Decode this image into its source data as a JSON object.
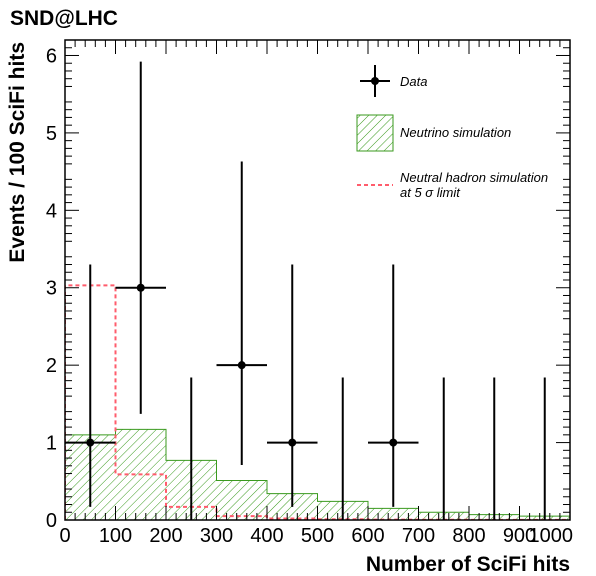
{
  "experiment_label": "SND@LHC",
  "chart_data": {
    "type": "histogram",
    "xlabel": "Number of SciFi hits",
    "ylabel": "Events / 100 SciFi hits",
    "xlim": [
      0,
      1000
    ],
    "ylim": [
      0,
      6.2
    ],
    "x_ticks": [
      "0",
      "100",
      "200",
      "300",
      "400",
      "500",
      "600",
      "700",
      "800",
      "900",
      "1000"
    ],
    "y_ticks": [
      "0",
      "1",
      "2",
      "3",
      "4",
      "5",
      "6"
    ],
    "bin_edges": [
      0,
      100,
      200,
      300,
      400,
      500,
      600,
      700,
      800,
      900,
      1000
    ],
    "series": [
      {
        "name": "Data",
        "style": "points-with-errors",
        "color": "#000000",
        "x": [
          50,
          150,
          250,
          350,
          450,
          550,
          650,
          750,
          850,
          950
        ],
        "values": [
          1,
          3,
          0,
          2,
          1,
          0,
          1,
          0,
          0,
          0
        ],
        "err_low": [
          0.83,
          1.63,
          0,
          1.29,
          0.83,
          0,
          0.83,
          0,
          0,
          0
        ],
        "err_high": [
          2.3,
          2.92,
          1.84,
          2.63,
          2.3,
          1.84,
          2.3,
          1.84,
          1.84,
          1.84
        ]
      },
      {
        "name": "Neutrino simulation",
        "style": "hatched-histogram",
        "color": "#3a9a1e",
        "values": [
          1.1,
          1.17,
          0.77,
          0.51,
          0.34,
          0.24,
          0.15,
          0.1,
          0.07,
          0.05
        ]
      },
      {
        "name": "Neutral hadron simulation",
        "name_line2": "at 5 σ limit",
        "style": "dashed-step",
        "color": "#ff5c6c",
        "values": [
          3.03,
          0.59,
          0.17,
          0.05,
          0.02,
          0.01,
          0.005,
          0.003,
          0.002,
          0.001
        ]
      }
    ],
    "legend_position": "top-right",
    "grid": false
  }
}
